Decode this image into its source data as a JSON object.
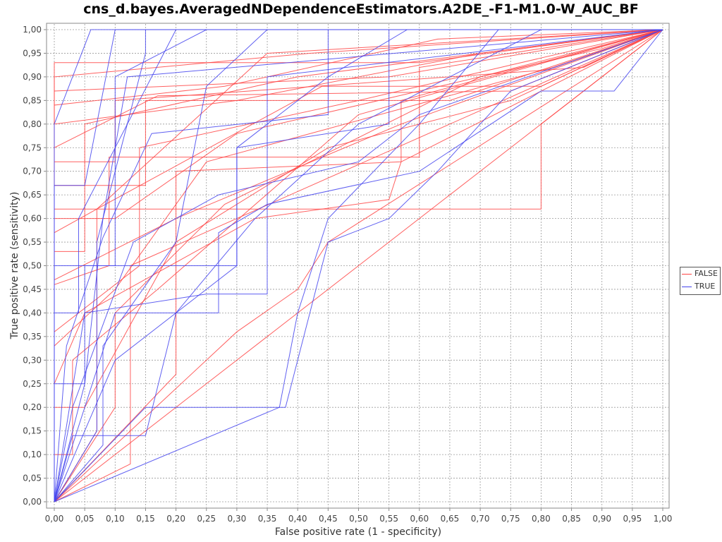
{
  "chart_data": {
    "type": "line",
    "title": "cns_d.bayes.AveragedNDependenceEstimators.A2DE_-F1-M1.0-W_AUC_BF",
    "xlabel": "False positive rate (1 - specificity)",
    "ylabel": "True positive rate (sensitivity)",
    "xlim": [
      0,
      1
    ],
    "ylim": [
      0,
      1
    ],
    "grid": true,
    "legend_position": "right",
    "x_ticks": [
      "0,00",
      "0,05",
      "0,10",
      "0,15",
      "0,20",
      "0,25",
      "0,30",
      "0,35",
      "0,40",
      "0,45",
      "0,50",
      "0,55",
      "0,60",
      "0,65",
      "0,70",
      "0,75",
      "0,80",
      "0,85",
      "0,90",
      "0,95",
      "1,00"
    ],
    "y_ticks": [
      "0,00",
      "0,05",
      "0,10",
      "0,15",
      "0,20",
      "0,25",
      "0,30",
      "0,35",
      "0,40",
      "0,45",
      "0,50",
      "0,55",
      "0,60",
      "0,65",
      "0,70",
      "0,75",
      "0,80",
      "0,85",
      "0,90",
      "0,95",
      "1,00"
    ],
    "series": [
      {
        "name": "FALSE",
        "color": "#ff4444",
        "curves": [
          [
            [
              0,
              0
            ],
            [
              1,
              1
            ]
          ],
          [
            [
              0,
              0
            ],
            [
              0.125,
              0.08
            ],
            [
              0.125,
              0.5
            ],
            [
              1,
              1
            ]
          ],
          [
            [
              0,
              0
            ],
            [
              0,
              0.47
            ],
            [
              0.2,
              0.6
            ],
            [
              0.57,
              0.8
            ],
            [
              1,
              1
            ]
          ],
          [
            [
              0,
              0
            ],
            [
              0,
              0.62
            ],
            [
              0.8,
              0.62
            ],
            [
              0.8,
              0.8
            ],
            [
              1,
              1
            ]
          ],
          [
            [
              0,
              0
            ],
            [
              0.3,
              0.36
            ],
            [
              0.4,
              0.45
            ],
            [
              0.45,
              0.55
            ],
            [
              1,
              1
            ]
          ],
          [
            [
              0,
              0
            ],
            [
              0,
              0.93
            ],
            [
              0.6,
              0.93
            ],
            [
              1,
              1
            ]
          ],
          [
            [
              0,
              0
            ],
            [
              0,
              0.87
            ],
            [
              0.55,
              0.9
            ],
            [
              1,
              1
            ]
          ],
          [
            [
              0,
              0
            ],
            [
              0,
              0.72
            ],
            [
              0.1,
              0.72
            ],
            [
              0.1,
              0.85
            ],
            [
              0.87,
              0.92
            ],
            [
              1,
              1
            ]
          ],
          [
            [
              0,
              0
            ],
            [
              0,
              0.8
            ],
            [
              0.3,
              0.85
            ],
            [
              0.7,
              0.95
            ],
            [
              1,
              1
            ]
          ],
          [
            [
              0,
              0
            ],
            [
              0,
              0.53
            ],
            [
              0.05,
              0.53
            ],
            [
              0.05,
              0.8
            ],
            [
              0.4,
              0.9
            ],
            [
              1,
              1
            ]
          ],
          [
            [
              0,
              0
            ],
            [
              0.2,
              0.27
            ],
            [
              0.2,
              0.7
            ],
            [
              0.57,
              0.72
            ],
            [
              0.57,
              0.85
            ],
            [
              1,
              1
            ]
          ],
          [
            [
              0,
              0
            ],
            [
              0,
              0.67
            ],
            [
              0.15,
              0.67
            ],
            [
              0.15,
              0.85
            ],
            [
              0.65,
              0.85
            ],
            [
              1,
              1
            ]
          ],
          [
            [
              0,
              0
            ],
            [
              0,
              0.33
            ],
            [
              0.1,
              0.45
            ],
            [
              0.25,
              0.72
            ],
            [
              0.82,
              0.92
            ],
            [
              1,
              1
            ]
          ],
          [
            [
              0,
              0
            ],
            [
              0,
              0.25
            ],
            [
              0.05,
              0.4
            ],
            [
              0.33,
              0.6
            ],
            [
              0.55,
              0.64
            ],
            [
              0.57,
              0.72
            ],
            [
              1,
              1
            ]
          ],
          [
            [
              0,
              0
            ],
            [
              0,
              0.9
            ],
            [
              0.42,
              0.95
            ],
            [
              1,
              1
            ]
          ],
          [
            [
              0,
              0
            ],
            [
              0.07,
              0.15
            ],
            [
              0.07,
              0.62
            ],
            [
              0.44,
              0.88
            ],
            [
              0.8,
              0.88
            ],
            [
              1,
              1
            ]
          ],
          [
            [
              0,
              0
            ],
            [
              0,
              0.2
            ],
            [
              0.05,
              0.2
            ],
            [
              0.2,
              0.55
            ],
            [
              0.45,
              0.75
            ],
            [
              0.75,
              0.85
            ],
            [
              1,
              1
            ]
          ],
          [
            [
              0,
              0
            ],
            [
              0,
              0.46
            ],
            [
              0.09,
              0.5
            ],
            [
              0.09,
              0.73
            ],
            [
              0.6,
              0.73
            ],
            [
              0.6,
              0.92
            ],
            [
              1,
              1
            ]
          ],
          [
            [
              0,
              0
            ],
            [
              0,
              0.75
            ],
            [
              0.17,
              0.86
            ],
            [
              0.75,
              0.87
            ],
            [
              1,
              1
            ]
          ],
          [
            [
              0,
              0
            ],
            [
              0.1,
              0.2
            ],
            [
              0.1,
              0.4
            ],
            [
              0.28,
              0.63
            ],
            [
              0.7,
              0.9
            ],
            [
              1,
              1
            ]
          ],
          [
            [
              0,
              0
            ],
            [
              0,
              0.57
            ],
            [
              0.07,
              0.62
            ],
            [
              0.35,
              0.95
            ],
            [
              1,
              1
            ]
          ],
          [
            [
              0,
              0
            ],
            [
              0,
              0.1
            ],
            [
              0.03,
              0.1
            ],
            [
              0.03,
              0.3
            ],
            [
              0.17,
              0.45
            ],
            [
              0.5,
              0.82
            ],
            [
              1,
              1
            ]
          ],
          [
            [
              0,
              0
            ],
            [
              0,
              0.36
            ],
            [
              0.14,
              0.5
            ],
            [
              0.14,
              0.75
            ],
            [
              0.5,
              0.85
            ],
            [
              1,
              1
            ]
          ],
          [
            [
              0,
              0
            ],
            [
              0,
              0.6
            ],
            [
              0.1,
              0.6
            ],
            [
              0.3,
              0.78
            ],
            [
              0.9,
              0.96
            ],
            [
              1,
              1
            ]
          ],
          [
            [
              0,
              0
            ],
            [
              0,
              0.84
            ],
            [
              0.28,
              0.88
            ],
            [
              0.63,
              0.98
            ],
            [
              1,
              1
            ]
          ]
        ]
      },
      {
        "name": "TRUE",
        "color": "#4444ee",
        "curves": [
          [
            [
              0,
              0
            ],
            [
              0.37,
              0.2
            ],
            [
              0.4,
              0.4
            ],
            [
              0.45,
              0.6
            ],
            [
              0.6,
              0.8
            ],
            [
              0.73,
              1
            ],
            [
              1,
              1
            ]
          ],
          [
            [
              0,
              0
            ],
            [
              0.15,
              0.2
            ],
            [
              0.38,
              0.2
            ],
            [
              0.45,
              0.55
            ],
            [
              0.55,
              0.6
            ],
            [
              0.63,
              0.7
            ],
            [
              0.7,
              0.8
            ],
            [
              0.75,
              0.87
            ],
            [
              1,
              1
            ]
          ],
          [
            [
              0,
              0
            ],
            [
              0.1,
              0.4
            ],
            [
              0.27,
              0.4
            ],
            [
              0.27,
              0.57
            ],
            [
              0.35,
              0.63
            ],
            [
              0.6,
              0.7
            ],
            [
              0.8,
              0.87
            ],
            [
              0.92,
              0.87
            ],
            [
              1,
              1
            ]
          ],
          [
            [
              0,
              0
            ],
            [
              0,
              0.8
            ],
            [
              0.06,
              1
            ],
            [
              1,
              1
            ]
          ],
          [
            [
              0,
              0
            ],
            [
              0.07,
              0.15
            ],
            [
              0.07,
              0.55
            ],
            [
              0.15,
              0.95
            ],
            [
              0.15,
              1
            ],
            [
              1,
              1
            ]
          ],
          [
            [
              0,
              0
            ],
            [
              0.03,
              0.2
            ],
            [
              0.13,
              0.55
            ],
            [
              0.27,
              0.65
            ],
            [
              0.5,
              0.72
            ],
            [
              0.6,
              0.82
            ],
            [
              1,
              1
            ]
          ],
          [
            [
              0,
              0
            ],
            [
              0,
              0.25
            ],
            [
              0.05,
              0.25
            ],
            [
              0.08,
              0.6
            ],
            [
              0.12,
              0.9
            ],
            [
              1,
              1
            ]
          ],
          [
            [
              0,
              0
            ],
            [
              0.05,
              0.4
            ],
            [
              0.25,
              0.44
            ],
            [
              0.35,
              0.44
            ],
            [
              0.35,
              0.9
            ],
            [
              1,
              1
            ]
          ],
          [
            [
              0,
              0
            ],
            [
              0,
              0.5
            ],
            [
              0.1,
              0.5
            ],
            [
              0.1,
              0.9
            ],
            [
              0.25,
              1
            ],
            [
              1,
              1
            ]
          ],
          [
            [
              0,
              0
            ],
            [
              0.03,
              0.14
            ],
            [
              0.15,
              0.14
            ],
            [
              0.2,
              0.4
            ],
            [
              0.33,
              0.6
            ],
            [
              0.5,
              0.8
            ],
            [
              0.8,
              1
            ],
            [
              1,
              1
            ]
          ],
          [
            [
              0,
              0
            ],
            [
              0,
              0.67
            ],
            [
              0.05,
              0.67
            ],
            [
              0.1,
              1
            ],
            [
              1,
              1
            ]
          ],
          [
            [
              0,
              0
            ],
            [
              0.1,
              0.3
            ],
            [
              0.3,
              0.5
            ],
            [
              0.3,
              0.75
            ],
            [
              0.55,
              0.8
            ],
            [
              0.55,
              1
            ],
            [
              1,
              1
            ]
          ],
          [
            [
              0,
              0
            ],
            [
              0.08,
              0.12
            ],
            [
              0.08,
              0.33
            ],
            [
              0.2,
              0.55
            ],
            [
              0.25,
              0.88
            ],
            [
              0.35,
              1
            ],
            [
              1,
              1
            ]
          ],
          [
            [
              0,
              0
            ],
            [
              0,
              0.4
            ],
            [
              0.04,
              0.4
            ],
            [
              0.04,
              0.6
            ],
            [
              0.1,
              0.75
            ],
            [
              0.2,
              1
            ],
            [
              1,
              1
            ]
          ],
          [
            [
              0,
              0
            ],
            [
              0.05,
              0.25
            ],
            [
              0.05,
              0.5
            ],
            [
              0.3,
              0.5
            ],
            [
              0.3,
              0.75
            ],
            [
              0.45,
              0.9
            ],
            [
              0.58,
              1
            ],
            [
              1,
              1
            ]
          ],
          [
            [
              0,
              0
            ],
            [
              0.02,
              0.33
            ],
            [
              0.08,
              0.56
            ],
            [
              0.16,
              0.78
            ],
            [
              0.45,
              0.82
            ],
            [
              0.45,
              1
            ],
            [
              1,
              1
            ]
          ]
        ]
      }
    ]
  }
}
